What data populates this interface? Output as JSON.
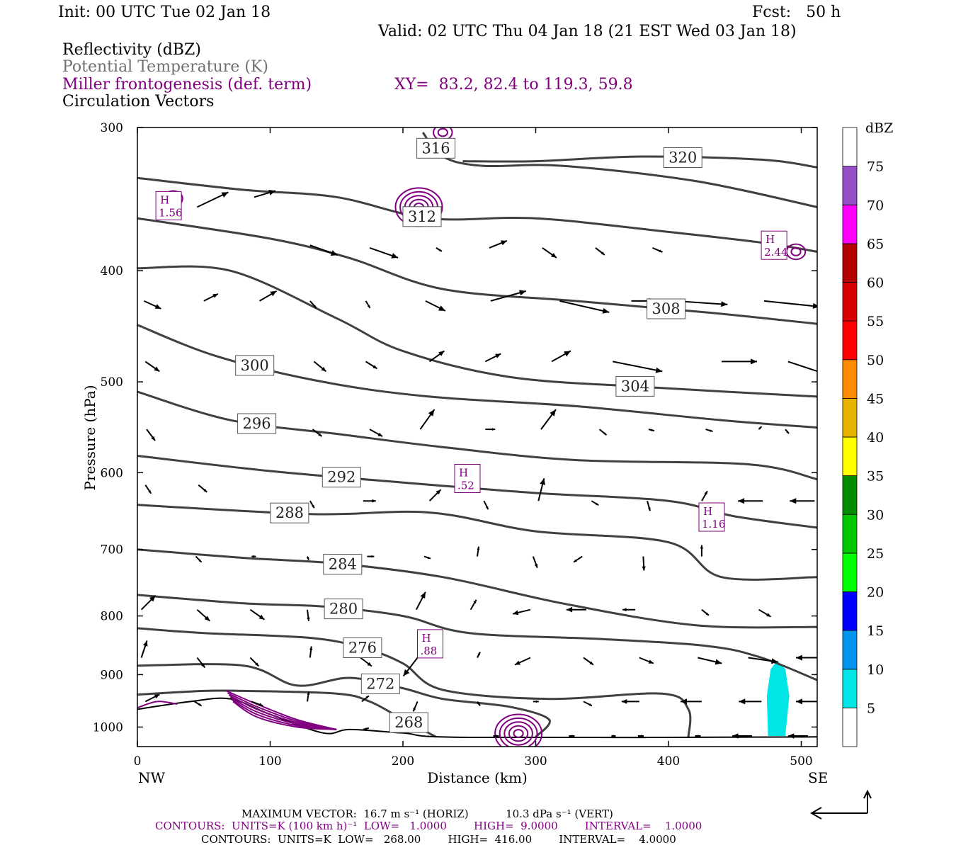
{
  "header": {
    "init": "Init: 00 UTC Tue 02 Jan 18",
    "fcst": "Fcst:   50 h",
    "valid": "Valid: 02 UTC Thu 04 Jan 18 (21 EST Wed 03 Jan 18)",
    "field1": "Reflectivity (dBZ)",
    "field2": "Potential Temperature (K)",
    "field3": "Miller frontogenesis (def. term)",
    "xy": "XY=  83.2, 82.4 to 119.3, 59.8",
    "field4": "Circulation Vectors"
  },
  "colors": {
    "theta_contour": "#404040",
    "frontogenesis": "#800080",
    "reflectivity_5_10": "#00e6e6"
  },
  "chart_data": {
    "type": "cross-section",
    "xlabel": "Distance (km)",
    "ylabel": "Pressure (hPa)",
    "xlim": [
      0,
      512
    ],
    "ylim": [
      1040,
      300
    ],
    "y_log": true,
    "x_ticks": [
      "0",
      "100",
      "200",
      "300",
      "400",
      "500"
    ],
    "x_tick_values": [
      0,
      100,
      200,
      300,
      400,
      500
    ],
    "y_ticks": [
      "300",
      "400",
      "500",
      "600",
      "700",
      "800",
      "900",
      "1000"
    ],
    "y_tick_values": [
      300,
      400,
      500,
      600,
      700,
      800,
      900,
      1000
    ],
    "left_end": "NW",
    "right_end": "SE",
    "theta_contours": [
      {
        "label": "320",
        "points": [
          [
            245,
            321
          ],
          [
            300,
            321
          ],
          [
            380,
            318
          ],
          [
            470,
            320
          ],
          [
            512,
            325
          ]
        ]
      },
      {
        "label": "316",
        "points": [
          [
            215,
            303
          ],
          [
            230,
            318
          ],
          [
            260,
            324
          ],
          [
            320,
            324
          ],
          [
            420,
            334
          ],
          [
            512,
            352
          ]
        ]
      },
      {
        "label": "312",
        "points": [
          [
            0,
            332
          ],
          [
            80,
            340
          ],
          [
            150,
            345
          ],
          [
            220,
            360
          ],
          [
            300,
            360
          ],
          [
            400,
            370
          ],
          [
            470,
            378
          ],
          [
            512,
            385
          ]
        ]
      },
      {
        "label": "308",
        "points": [
          [
            0,
            360
          ],
          [
            100,
            375
          ],
          [
            160,
            390
          ],
          [
            230,
            415
          ],
          [
            330,
            425
          ],
          [
            430,
            435
          ],
          [
            512,
            445
          ]
        ]
      },
      {
        "label": "304",
        "points": [
          [
            0,
            398
          ],
          [
            70,
            400
          ],
          [
            150,
            440
          ],
          [
            200,
            470
          ],
          [
            280,
            495
          ],
          [
            380,
            505
          ],
          [
            512,
            515
          ]
        ]
      },
      {
        "label": "300",
        "points": [
          [
            0,
            446
          ],
          [
            60,
            475
          ],
          [
            140,
            500
          ],
          [
            220,
            515
          ],
          [
            330,
            525
          ],
          [
            440,
            540
          ],
          [
            512,
            548
          ]
        ]
      },
      {
        "label": "296",
        "points": [
          [
            0,
            510
          ],
          [
            70,
            540
          ],
          [
            150,
            555
          ],
          [
            230,
            570
          ],
          [
            330,
            585
          ],
          [
            460,
            590
          ],
          [
            512,
            608
          ]
        ]
      },
      {
        "label": "292",
        "points": [
          [
            0,
            580
          ],
          [
            100,
            598
          ],
          [
            200,
            612
          ],
          [
            300,
            625
          ],
          [
            400,
            635
          ],
          [
            450,
            655
          ],
          [
            512,
            670
          ]
        ]
      },
      {
        "label": "288",
        "points": [
          [
            0,
            640
          ],
          [
            130,
            652
          ],
          [
            220,
            650
          ],
          [
            300,
            675
          ],
          [
            400,
            690
          ],
          [
            440,
            740
          ],
          [
            512,
            740
          ]
        ]
      },
      {
        "label": "284",
        "points": [
          [
            0,
            700
          ],
          [
            80,
            712
          ],
          [
            150,
            720
          ],
          [
            230,
            740
          ],
          [
            320,
            780
          ],
          [
            420,
            815
          ],
          [
            512,
            818
          ]
        ]
      },
      {
        "label": "280",
        "points": [
          [
            0,
            767
          ],
          [
            80,
            780
          ],
          [
            140,
            785
          ],
          [
            200,
            800
          ],
          [
            250,
            828
          ],
          [
            350,
            838
          ],
          [
            430,
            850
          ],
          [
            470,
            870
          ],
          [
            512,
            910
          ]
        ]
      },
      {
        "label": "276",
        "points": [
          [
            0,
            820
          ],
          [
            50,
            828
          ],
          [
            130,
            836
          ],
          [
            170,
            853
          ],
          [
            200,
            880
          ],
          [
            230,
            928
          ],
          [
            310,
            945
          ],
          [
            395,
            935
          ],
          [
            415,
            965
          ],
          [
            415,
            1020
          ]
        ]
      },
      {
        "label": "272",
        "points": [
          [
            0,
            884
          ],
          [
            80,
            884
          ],
          [
            120,
            920
          ],
          [
            160,
            906
          ],
          [
            200,
            925
          ],
          [
            230,
            945
          ],
          [
            280,
            960
          ],
          [
            310,
            985
          ],
          [
            300,
            1020
          ]
        ]
      },
      {
        "label": "268",
        "points": [
          [
            0,
            937
          ],
          [
            50,
            930
          ],
          [
            80,
            930
          ],
          [
            150,
            935
          ],
          [
            175,
            950
          ],
          [
            200,
            985
          ],
          [
            225,
            1020
          ]
        ]
      }
    ],
    "ground_pressure": [
      [
        0,
        965
      ],
      [
        40,
        950
      ],
      [
        70,
        945
      ],
      [
        100,
        975
      ],
      [
        140,
        1012
      ],
      [
        160,
        1005
      ],
      [
        200,
        1012
      ],
      [
        250,
        1021
      ],
      [
        512,
        1020
      ]
    ],
    "frontogenesis_maxima": [
      {
        "label": "1.56",
        "x": 23,
        "p": 351
      },
      {
        "label": ".52",
        "x": 248,
        "p": 607
      },
      {
        "label": "1.16",
        "x": 432,
        "p": 656
      },
      {
        "label": ".88",
        "x": 220,
        "p": 846
      },
      {
        "label": "2.44",
        "x": 479,
        "p": 380
      }
    ],
    "frontogenesis_contours": [
      {
        "x": 212,
        "p": 352,
        "rings": 5
      },
      {
        "x": 27,
        "p": 346,
        "rings": 2
      },
      {
        "x": 496,
        "p": 385,
        "rings": 2
      },
      {
        "x": 230,
        "p": 303,
        "rings": 2
      },
      {
        "x": 287,
        "p": 1013,
        "rings": 5
      }
    ],
    "reflectivity_region": {
      "dbz": "5-10",
      "points": [
        [
          482,
          875
        ],
        [
          488,
          890
        ],
        [
          491,
          940
        ],
        [
          488,
          1018
        ],
        [
          475,
          1018
        ],
        [
          474,
          940
        ],
        [
          477,
          890
        ]
      ]
    },
    "vectors": [
      [
        45,
        352,
        44,
        -21
      ],
      [
        88,
        345,
        30,
        -9
      ],
      [
        130,
        380,
        39,
        14
      ],
      [
        175,
        382,
        40,
        14
      ],
      [
        225,
        382,
        8,
        5
      ],
      [
        265,
        382,
        25,
        -10
      ],
      [
        305,
        382,
        20,
        14
      ],
      [
        345,
        382,
        13,
        10
      ],
      [
        388,
        382,
        14,
        6
      ],
      [
        5,
        425,
        24,
        11
      ],
      [
        50,
        425,
        20,
        -10
      ],
      [
        92,
        425,
        24,
        -14
      ],
      [
        130,
        425,
        9,
        10
      ],
      [
        172,
        425,
        6,
        10
      ],
      [
        217,
        425,
        28,
        14
      ],
      [
        266,
        425,
        50,
        -14
      ],
      [
        318,
        425,
        70,
        16
      ],
      [
        372,
        425,
        34,
        0
      ],
      [
        405,
        425,
        74,
        5
      ],
      [
        472,
        425,
        78,
        8
      ],
      [
        6,
        480,
        20,
        14
      ],
      [
        90,
        480,
        5,
        -6
      ],
      [
        133,
        480,
        17,
        14
      ],
      [
        172,
        480,
        16,
        10
      ],
      [
        220,
        480,
        21,
        -15
      ],
      [
        262,
        480,
        22,
        -11
      ],
      [
        312,
        480,
        27,
        -15
      ],
      [
        358,
        480,
        70,
        14
      ],
      [
        440,
        480,
        50,
        0
      ],
      [
        490,
        480,
        60,
        20
      ],
      [
        7,
        550,
        12,
        16
      ],
      [
        82,
        550,
        16,
        -8
      ],
      [
        132,
        550,
        13,
        10
      ],
      [
        175,
        550,
        18,
        10
      ],
      [
        213,
        550,
        20,
        -28
      ],
      [
        262,
        550,
        14,
        0
      ],
      [
        304,
        550,
        21,
        -28
      ],
      [
        348,
        550,
        10,
        8
      ],
      [
        385,
        550,
        8,
        2
      ],
      [
        428,
        550,
        10,
        3
      ],
      [
        468,
        550,
        4,
        -4
      ],
      [
        488,
        550,
        5,
        6
      ],
      [
        6,
        615,
        8,
        12
      ],
      [
        46,
        615,
        12,
        10
      ],
      [
        130,
        635,
        6,
        10
      ],
      [
        170,
        635,
        18,
        0
      ],
      [
        220,
        635,
        16,
        -16
      ],
      [
        261,
        635,
        6,
        12
      ],
      [
        302,
        635,
        8,
        -32
      ],
      [
        342,
        635,
        10,
        6
      ],
      [
        384,
        635,
        4,
        14
      ],
      [
        425,
        635,
        8,
        -14
      ],
      [
        471,
        635,
        -35,
        0
      ],
      [
        510,
        635,
        -35,
        0
      ],
      [
        44,
        710,
        8,
        8
      ],
      [
        86,
        710,
        6,
        0
      ],
      [
        128,
        710,
        2,
        5
      ],
      [
        173,
        710,
        10,
        0
      ],
      [
        216,
        710,
        9,
        3
      ],
      [
        256,
        710,
        2,
        -14
      ],
      [
        298,
        710,
        6,
        16
      ],
      [
        335,
        710,
        -12,
        8
      ],
      [
        381,
        710,
        1,
        20
      ],
      [
        425,
        710,
        0,
        -16
      ],
      [
        3,
        790,
        20,
        -20
      ],
      [
        45,
        790,
        18,
        16
      ],
      [
        85,
        790,
        20,
        14
      ],
      [
        128,
        790,
        2,
        16
      ],
      [
        167,
        790,
        5,
        6
      ],
      [
        210,
        790,
        13,
        -25
      ],
      [
        251,
        790,
        8,
        -14
      ],
      [
        296,
        790,
        -25,
        6
      ],
      [
        338,
        790,
        -28,
        0
      ],
      [
        375,
        790,
        -18,
        0
      ],
      [
        425,
        790,
        10,
        8
      ],
      [
        468,
        790,
        17,
        10
      ],
      [
        3,
        870,
        8,
        -24
      ],
      [
        45,
        870,
        11,
        14
      ],
      [
        85,
        870,
        12,
        12
      ],
      [
        130,
        870,
        2,
        -16
      ],
      [
        168,
        870,
        16,
        12
      ],
      [
        211,
        870,
        -20,
        26
      ],
      [
        256,
        870,
        4,
        -8
      ],
      [
        296,
        870,
        -22,
        10
      ],
      [
        336,
        870,
        14,
        10
      ],
      [
        378,
        870,
        20,
        8
      ],
      [
        422,
        870,
        34,
        8
      ],
      [
        460,
        870,
        42,
        6
      ],
      [
        512,
        870,
        -30,
        0
      ],
      [
        6,
        950,
        20,
        -10
      ],
      [
        43,
        950,
        10,
        6
      ],
      [
        86,
        950,
        16,
        6
      ],
      [
        128,
        950,
        2,
        -14
      ],
      [
        169,
        950,
        10,
        -8
      ],
      [
        211,
        950,
        -6,
        14
      ],
      [
        256,
        950,
        4,
        6
      ],
      [
        298,
        950,
        8,
        0
      ],
      [
        336,
        950,
        12,
        6
      ],
      [
        378,
        950,
        -25,
        0
      ],
      [
        425,
        950,
        -30,
        0
      ],
      [
        470,
        950,
        -32,
        0
      ],
      [
        512,
        950,
        -30,
        0
      ],
      [
        170,
        1005,
        8,
        -2
      ],
      [
        268,
        1018,
        8,
        0
      ],
      [
        325,
        1018,
        8,
        0
      ],
      [
        357,
        1018,
        6,
        0
      ],
      [
        377,
        1018,
        8,
        0
      ],
      [
        420,
        1018,
        8,
        0
      ],
      [
        463,
        1018,
        -28,
        0
      ],
      [
        505,
        1018,
        -28,
        0
      ]
    ]
  },
  "colorbar": {
    "unit": "dBZ",
    "levels": [
      "5",
      "10",
      "15",
      "20",
      "25",
      "30",
      "35",
      "40",
      "45",
      "50",
      "55",
      "60",
      "65",
      "70",
      "75"
    ],
    "colors": [
      "#ffffff",
      "#00e6e6",
      "#0096f0",
      "#0000ff",
      "#00ff00",
      "#00c800",
      "#008c00",
      "#ffff00",
      "#e6b400",
      "#ff8c00",
      "#ff0000",
      "#d70000",
      "#b40000",
      "#ff00ff",
      "#9650c8",
      "#ffffff"
    ]
  },
  "footer": {
    "max_vector": "MAXIMUM VECTOR:  16.7 m s⁻¹ (HORIZ)           10.3 dPa s⁻¹ (VERT)",
    "contours_purple": "CONTOURS:  UNITS=K (100 km h)⁻¹  LOW=   1.0000        HIGH=  9.0000        INTERVAL=    1.0000",
    "contours_black": "CONTOURS:  UNITS=K  LOW=   268.00        HIGH=  416.00        INTERVAL=    4.0000"
  }
}
